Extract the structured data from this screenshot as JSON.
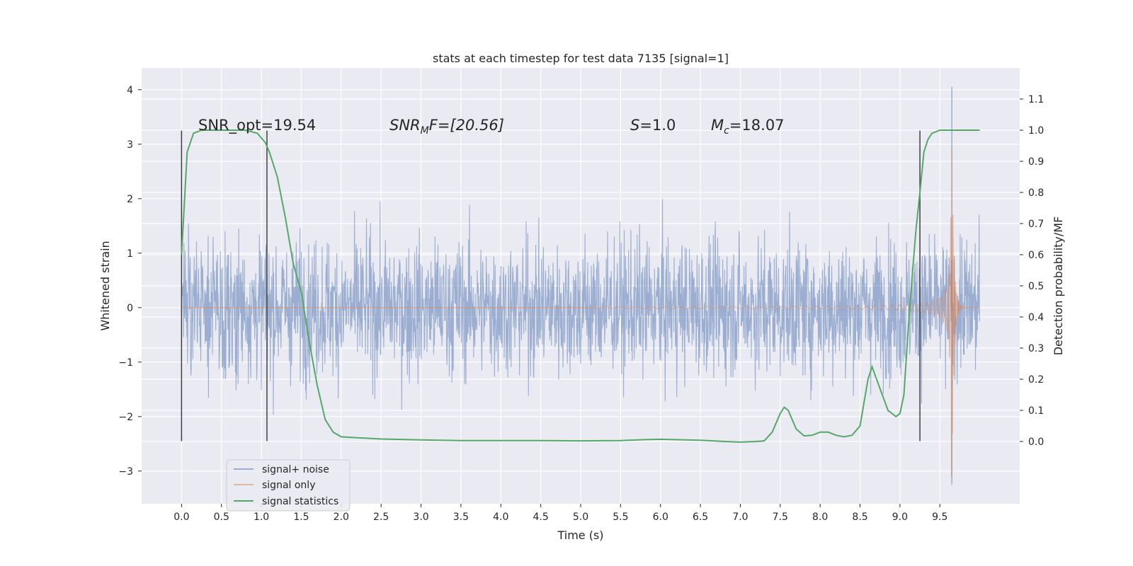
{
  "chart_data": {
    "type": "line",
    "title": "stats at each timestep for test data 7135 [signal=1]",
    "xlabel": "Time (s)",
    "ylabel": "Whitened strain",
    "ylabel_right": "Detection probability/MF",
    "xlim": [
      -0.5,
      10.5
    ],
    "ylim": [
      -3.6,
      4.4
    ],
    "ylim_right": [
      -0.2,
      1.2
    ],
    "xticks": [
      "0.0",
      "0.5",
      "1.0",
      "1.5",
      "2.0",
      "2.5",
      "3.0",
      "3.5",
      "4.0",
      "4.5",
      "5.0",
      "5.5",
      "6.0",
      "6.5",
      "7.0",
      "7.5",
      "8.0",
      "8.5",
      "9.0",
      "9.5"
    ],
    "yticks": [
      "−3",
      "−2",
      "−1",
      "0",
      "1",
      "2",
      "3",
      "4"
    ],
    "yticks_right": [
      "0.0",
      "0.1",
      "0.2",
      "0.3",
      "0.4",
      "0.5",
      "0.6",
      "0.7",
      "0.8",
      "0.9",
      "1.0",
      "1.1"
    ],
    "grid": true,
    "legend_position": "lower-left",
    "colors": {
      "noise": "#4c72b0",
      "signal": "#dd8452",
      "stats": "#55a868",
      "background": "#eaeaf2",
      "vlines": "#404040"
    },
    "annotations": {
      "snr_opt": "SNR_opt=19.54",
      "snr_mf_prefix": "SNR",
      "snr_mf_sub": "M",
      "snr_mf_suffix": "F=[20.56]",
      "s_label": "S",
      "s_value": "=1.0",
      "mc_label": "M",
      "mc_sub": "c",
      "mc_value": "=18.07"
    },
    "vertical_lines_x": [
      0.0,
      1.07,
      9.25
    ],
    "series": [
      {
        "name": "signal+ noise",
        "noise_envelope": {
          "x_start": 0.0,
          "x_end": 10.0,
          "typical_max": 1.6,
          "typical_min": -1.6,
          "max": 4.05,
          "min": -3.25
        }
      },
      {
        "name": "signal only",
        "chirp": {
          "x_start": 5.2,
          "merger_x": 9.65,
          "peak_amplitude": 3.2,
          "x_end": 10.0
        }
      },
      {
        "name": "signal statistics",
        "x": [
          0.0,
          0.07,
          0.15,
          0.25,
          0.4,
          0.6,
          0.8,
          0.95,
          1.05,
          1.1,
          1.2,
          1.3,
          1.4,
          1.5,
          1.6,
          1.7,
          1.8,
          1.9,
          2.0,
          2.2,
          2.5,
          3.0,
          3.5,
          4.0,
          4.5,
          5.0,
          5.5,
          5.8,
          6.0,
          6.5,
          6.8,
          7.0,
          7.2,
          7.3,
          7.4,
          7.5,
          7.55,
          7.6,
          7.7,
          7.8,
          7.9,
          8.0,
          8.1,
          8.2,
          8.3,
          8.4,
          8.5,
          8.6,
          8.65,
          8.75,
          8.85,
          8.95,
          9.0,
          9.05,
          9.1,
          9.15,
          9.2,
          9.25,
          9.3,
          9.35,
          9.4,
          9.5,
          9.6,
          9.7,
          9.8,
          9.9,
          10.0
        ],
        "values": [
          0.6,
          0.93,
          0.99,
          1.0,
          1.0,
          1.0,
          1.0,
          0.99,
          0.96,
          0.93,
          0.85,
          0.72,
          0.57,
          0.48,
          0.32,
          0.18,
          0.07,
          0.03,
          0.015,
          0.012,
          0.008,
          0.005,
          0.003,
          0.003,
          0.003,
          0.002,
          0.003,
          0.006,
          0.007,
          0.004,
          0.0,
          -0.002,
          0.0,
          0.002,
          0.03,
          0.09,
          0.11,
          0.1,
          0.04,
          0.018,
          0.02,
          0.03,
          0.03,
          0.02,
          0.015,
          0.02,
          0.05,
          0.2,
          0.24,
          0.17,
          0.1,
          0.08,
          0.09,
          0.15,
          0.35,
          0.52,
          0.68,
          0.8,
          0.93,
          0.97,
          0.99,
          1.0,
          1.0,
          1.0,
          1.0,
          1.0,
          1.0
        ]
      }
    ]
  }
}
